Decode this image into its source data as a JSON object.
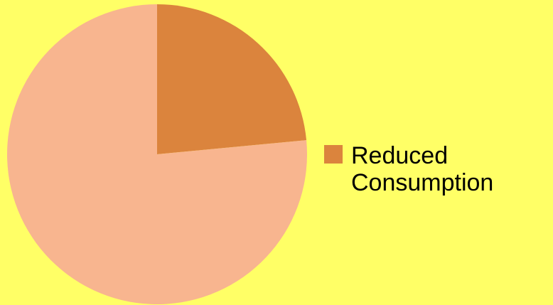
{
  "chart_data": {
    "type": "pie",
    "slices": [
      {
        "label": "Reduced Consumption",
        "value": 23.5,
        "color": "#DB843D"
      },
      {
        "label": "",
        "value": 76.5,
        "color": "#F8B58F"
      }
    ],
    "start_angle_deg": 0,
    "direction": "clockwise",
    "legend": {
      "placement": "right",
      "entries": [
        {
          "label": "Reduced Consumption",
          "color": "#DB843D"
        }
      ]
    },
    "title": ""
  },
  "colors": {
    "background": "#FFFF66"
  }
}
